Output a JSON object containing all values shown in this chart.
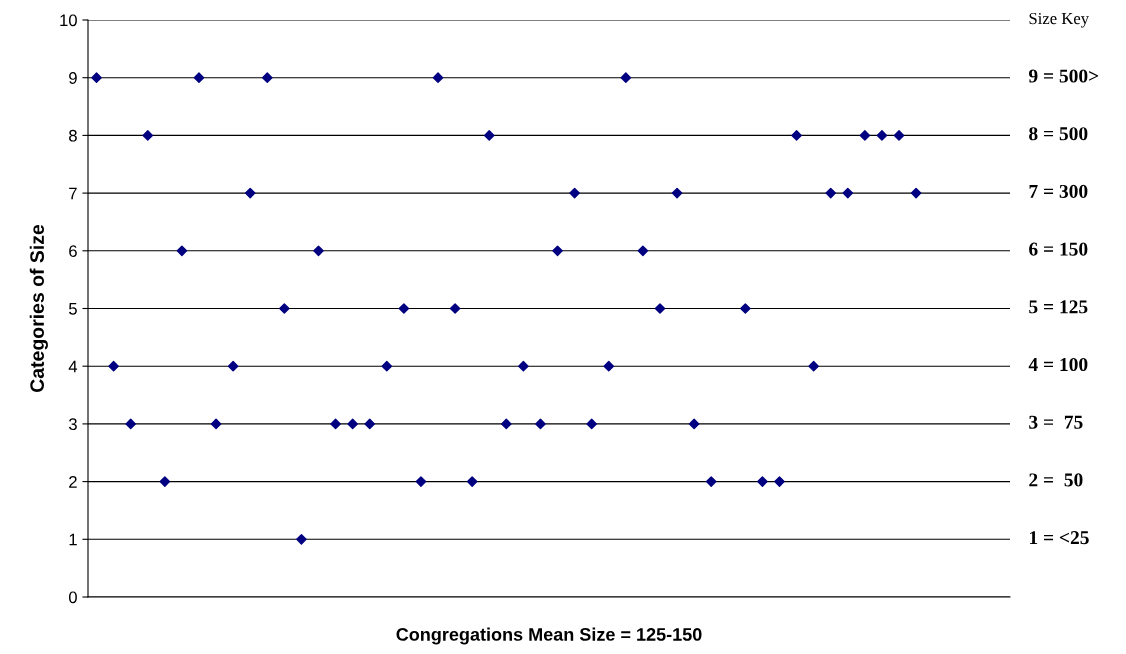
{
  "chart_data": {
    "type": "scatter",
    "xlabel": "Congregations Mean Size = 125-150",
    "ylabel": "Categories of Size",
    "categories": [
      null,
      null,
      null,
      null,
      null,
      null,
      null,
      null,
      null,
      null,
      null,
      null,
      null,
      null,
      null,
      null,
      null,
      null,
      null,
      null,
      null,
      null,
      null,
      null,
      null,
      null,
      null,
      null,
      null,
      null,
      null,
      null,
      null,
      null,
      null,
      null,
      null,
      null,
      null,
      null,
      null,
      null,
      null,
      null,
      null,
      null,
      null,
      null,
      null,
      null,
      null,
      null,
      null,
      null
    ],
    "series": [
      {
        "color": "#000080",
        "values": [
          9,
          4,
          3,
          8,
          2,
          6,
          9,
          3,
          4,
          7,
          9,
          5,
          1,
          6,
          3,
          3,
          3,
          4,
          5,
          2,
          9,
          5,
          2,
          8,
          3,
          4,
          3,
          6,
          7,
          3,
          4,
          9,
          6,
          5,
          7,
          3,
          2,
          null,
          5,
          2,
          2,
          8,
          4,
          7,
          7,
          8,
          8,
          8,
          7,
          null,
          null,
          null,
          null,
          null
        ]
      }
    ],
    "ylim": [
      0,
      10
    ],
    "yticks": [
      0,
      1,
      2,
      3,
      4,
      5,
      6,
      7,
      8,
      9,
      10
    ],
    "annotations": [
      "Size Key",
      "9 = 500>",
      "8 = 500",
      "7 = 300",
      "6 = 150",
      "5 = 125",
      "4 = 100",
      "3 =  75",
      "2 =  50",
      "1 = <25"
    ],
    "tick_labels": "y",
    "grid": "y",
    "marker": "diamond"
  }
}
